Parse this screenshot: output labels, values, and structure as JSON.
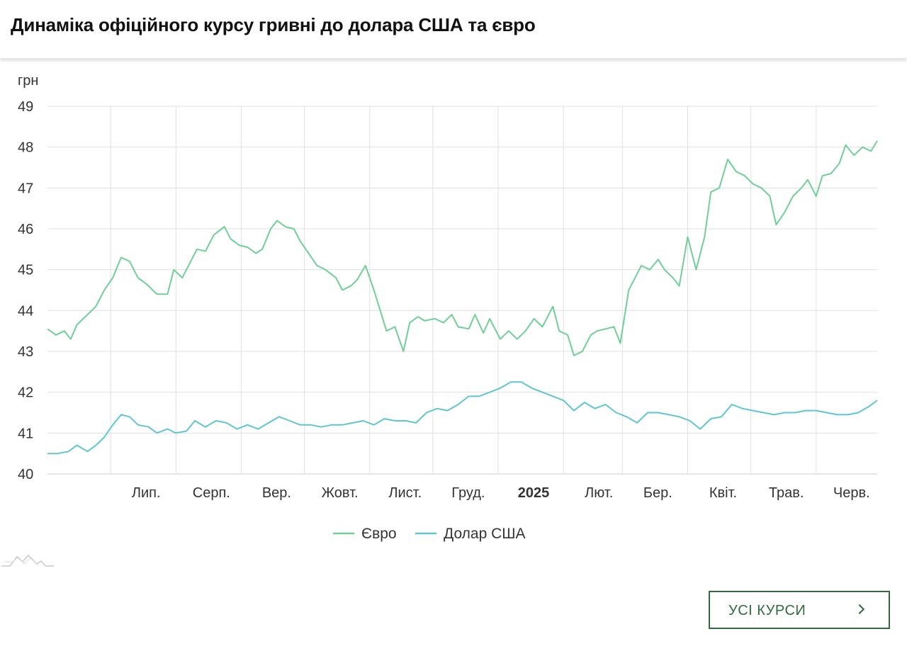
{
  "header": {
    "title": "Динаміка офіційного курсу гривні до долара США та євро"
  },
  "button": {
    "label": "УСІ КУРСИ",
    "icon": "chevron-right-icon"
  },
  "colors": {
    "euro": "#6fcf97",
    "usd": "#5ec6d0",
    "button": "#2f6b3c"
  },
  "chart_data": {
    "type": "line",
    "ylabel": "грн",
    "ylim": [
      40,
      49
    ],
    "yticks": [
      40,
      41,
      42,
      43,
      44,
      45,
      46,
      47,
      48,
      49
    ],
    "x_range": [
      "2024-06-01",
      "2025-06-30"
    ],
    "xticks": [
      {
        "date": "2024-07-01",
        "label": "Лип.",
        "bold": false
      },
      {
        "date": "2024-08-01",
        "label": "Серп.",
        "bold": false
      },
      {
        "date": "2024-09-01",
        "label": "Вер.",
        "bold": false
      },
      {
        "date": "2024-10-01",
        "label": "Жовт.",
        "bold": false
      },
      {
        "date": "2024-11-01",
        "label": "Лист.",
        "bold": false
      },
      {
        "date": "2024-12-01",
        "label": "Груд.",
        "bold": false
      },
      {
        "date": "2025-01-01",
        "label": "2025",
        "bold": true
      },
      {
        "date": "2025-02-01",
        "label": "Лют.",
        "bold": false
      },
      {
        "date": "2025-03-01",
        "label": "Бер.",
        "bold": false
      },
      {
        "date": "2025-04-01",
        "label": "Квіт.",
        "bold": false
      },
      {
        "date": "2025-05-01",
        "label": "Трав.",
        "bold": false
      },
      {
        "date": "2025-06-01",
        "label": "Черв.",
        "bold": false
      }
    ],
    "grid": true,
    "legend_position": "bottom",
    "series": [
      {
        "name": "Євро",
        "color": "#6fcf97",
        "points": [
          [
            "2024-06-01",
            43.55
          ],
          [
            "2024-06-05",
            43.4
          ],
          [
            "2024-06-09",
            43.5
          ],
          [
            "2024-06-12",
            43.3
          ],
          [
            "2024-06-15",
            43.65
          ],
          [
            "2024-06-19",
            43.85
          ],
          [
            "2024-06-24",
            44.1
          ],
          [
            "2024-06-28",
            44.5
          ],
          [
            "2024-07-02",
            44.8
          ],
          [
            "2024-07-06",
            45.3
          ],
          [
            "2024-07-10",
            45.2
          ],
          [
            "2024-07-14",
            44.8
          ],
          [
            "2024-07-18",
            44.65
          ],
          [
            "2024-07-23",
            44.4
          ],
          [
            "2024-07-28",
            44.4
          ],
          [
            "2024-07-31",
            45.0
          ],
          [
            "2024-08-04",
            44.8
          ],
          [
            "2024-08-08",
            45.2
          ],
          [
            "2024-08-11",
            45.5
          ],
          [
            "2024-08-15",
            45.45
          ],
          [
            "2024-08-19",
            45.85
          ],
          [
            "2024-08-24",
            46.05
          ],
          [
            "2024-08-27",
            45.75
          ],
          [
            "2024-08-31",
            45.6
          ],
          [
            "2024-09-04",
            45.55
          ],
          [
            "2024-09-08",
            45.4
          ],
          [
            "2024-09-11",
            45.5
          ],
          [
            "2024-09-15",
            46.0
          ],
          [
            "2024-09-18",
            46.2
          ],
          [
            "2024-09-22",
            46.05
          ],
          [
            "2024-09-26",
            46.0
          ],
          [
            "2024-09-29",
            45.7
          ],
          [
            "2024-10-03",
            45.4
          ],
          [
            "2024-10-07",
            45.1
          ],
          [
            "2024-10-11",
            45.0
          ],
          [
            "2024-10-16",
            44.8
          ],
          [
            "2024-10-19",
            44.5
          ],
          [
            "2024-10-23",
            44.6
          ],
          [
            "2024-10-26",
            44.75
          ],
          [
            "2024-10-30",
            45.1
          ],
          [
            "2024-11-03",
            44.5
          ],
          [
            "2024-11-06",
            44.0
          ],
          [
            "2024-11-09",
            43.5
          ],
          [
            "2024-11-13",
            43.6
          ],
          [
            "2024-11-17",
            43.0
          ],
          [
            "2024-11-20",
            43.7
          ],
          [
            "2024-11-24",
            43.85
          ],
          [
            "2024-11-27",
            43.75
          ],
          [
            "2024-12-02",
            43.8
          ],
          [
            "2024-12-06",
            43.7
          ],
          [
            "2024-12-10",
            43.9
          ],
          [
            "2024-12-13",
            43.6
          ],
          [
            "2024-12-18",
            43.55
          ],
          [
            "2024-12-21",
            43.9
          ],
          [
            "2024-12-25",
            43.45
          ],
          [
            "2024-12-28",
            43.8
          ],
          [
            "2025-01-02",
            43.3
          ],
          [
            "2025-01-06",
            43.5
          ],
          [
            "2025-01-10",
            43.3
          ],
          [
            "2025-01-14",
            43.5
          ],
          [
            "2025-01-18",
            43.8
          ],
          [
            "2025-01-22",
            43.6
          ],
          [
            "2025-01-27",
            44.1
          ],
          [
            "2025-01-30",
            43.5
          ],
          [
            "2025-02-03",
            43.4
          ],
          [
            "2025-02-06",
            42.9
          ],
          [
            "2025-02-10",
            43.0
          ],
          [
            "2025-02-14",
            43.4
          ],
          [
            "2025-02-17",
            43.5
          ],
          [
            "2025-02-21",
            43.55
          ],
          [
            "2025-02-25",
            43.6
          ],
          [
            "2025-02-28",
            43.2
          ],
          [
            "2025-03-04",
            44.5
          ],
          [
            "2025-03-07",
            44.8
          ],
          [
            "2025-03-10",
            45.1
          ],
          [
            "2025-03-14",
            45.0
          ],
          [
            "2025-03-18",
            45.25
          ],
          [
            "2025-03-21",
            45.0
          ],
          [
            "2025-03-25",
            44.8
          ],
          [
            "2025-03-28",
            44.6
          ],
          [
            "2025-04-01",
            45.8
          ],
          [
            "2025-04-05",
            45.0
          ],
          [
            "2025-04-09",
            45.8
          ],
          [
            "2025-04-12",
            46.9
          ],
          [
            "2025-04-16",
            47.0
          ],
          [
            "2025-04-20",
            47.7
          ],
          [
            "2025-04-24",
            47.4
          ],
          [
            "2025-04-28",
            47.3
          ],
          [
            "2025-05-02",
            47.1
          ],
          [
            "2025-05-06",
            47.0
          ],
          [
            "2025-05-10",
            46.8
          ],
          [
            "2025-05-13",
            46.1
          ],
          [
            "2025-05-17",
            46.4
          ],
          [
            "2025-05-21",
            46.8
          ],
          [
            "2025-05-25",
            47.0
          ],
          [
            "2025-05-28",
            47.2
          ],
          [
            "2025-06-01",
            46.8
          ],
          [
            "2025-06-04",
            47.3
          ],
          [
            "2025-06-08",
            47.35
          ],
          [
            "2025-06-12",
            47.6
          ],
          [
            "2025-06-15",
            48.05
          ],
          [
            "2025-06-19",
            47.8
          ],
          [
            "2025-06-23",
            48.0
          ],
          [
            "2025-06-27",
            47.9
          ],
          [
            "2025-06-30",
            48.15
          ]
        ]
      },
      {
        "name": "Долар США",
        "color": "#5ec6d0",
        "points": [
          [
            "2024-06-01",
            40.5
          ],
          [
            "2024-06-06",
            40.5
          ],
          [
            "2024-06-11",
            40.55
          ],
          [
            "2024-06-15",
            40.7
          ],
          [
            "2024-06-20",
            40.55
          ],
          [
            "2024-06-24",
            40.7
          ],
          [
            "2024-06-28",
            40.9
          ],
          [
            "2024-07-02",
            41.2
          ],
          [
            "2024-07-06",
            41.45
          ],
          [
            "2024-07-10",
            41.4
          ],
          [
            "2024-07-14",
            41.2
          ],
          [
            "2024-07-19",
            41.15
          ],
          [
            "2024-07-23",
            41.0
          ],
          [
            "2024-07-28",
            41.1
          ],
          [
            "2024-08-01",
            41.0
          ],
          [
            "2024-08-06",
            41.05
          ],
          [
            "2024-08-10",
            41.3
          ],
          [
            "2024-08-15",
            41.15
          ],
          [
            "2024-08-20",
            41.3
          ],
          [
            "2024-08-25",
            41.25
          ],
          [
            "2024-08-30",
            41.1
          ],
          [
            "2024-09-04",
            41.2
          ],
          [
            "2024-09-09",
            41.1
          ],
          [
            "2024-09-14",
            41.25
          ],
          [
            "2024-09-19",
            41.4
          ],
          [
            "2024-09-24",
            41.3
          ],
          [
            "2024-09-29",
            41.2
          ],
          [
            "2024-10-04",
            41.2
          ],
          [
            "2024-10-09",
            41.15
          ],
          [
            "2024-10-14",
            41.2
          ],
          [
            "2024-10-19",
            41.2
          ],
          [
            "2024-10-24",
            41.25
          ],
          [
            "2024-10-29",
            41.3
          ],
          [
            "2024-11-03",
            41.2
          ],
          [
            "2024-11-08",
            41.35
          ],
          [
            "2024-11-13",
            41.3
          ],
          [
            "2024-11-18",
            41.3
          ],
          [
            "2024-11-23",
            41.25
          ],
          [
            "2024-11-28",
            41.5
          ],
          [
            "2024-12-03",
            41.6
          ],
          [
            "2024-12-08",
            41.55
          ],
          [
            "2024-12-13",
            41.7
          ],
          [
            "2024-12-18",
            41.9
          ],
          [
            "2024-12-23",
            41.9
          ],
          [
            "2024-12-28",
            42.0
          ],
          [
            "2025-01-02",
            42.1
          ],
          [
            "2025-01-07",
            42.25
          ],
          [
            "2025-01-12",
            42.25
          ],
          [
            "2025-01-17",
            42.1
          ],
          [
            "2025-01-22",
            42.0
          ],
          [
            "2025-01-27",
            41.9
          ],
          [
            "2025-02-01",
            41.8
          ],
          [
            "2025-02-06",
            41.55
          ],
          [
            "2025-02-11",
            41.75
          ],
          [
            "2025-02-16",
            41.6
          ],
          [
            "2025-02-21",
            41.7
          ],
          [
            "2025-02-26",
            41.5
          ],
          [
            "2025-03-03",
            41.4
          ],
          [
            "2025-03-08",
            41.25
          ],
          [
            "2025-03-13",
            41.5
          ],
          [
            "2025-03-18",
            41.5
          ],
          [
            "2025-03-23",
            41.45
          ],
          [
            "2025-03-28",
            41.4
          ],
          [
            "2025-04-02",
            41.3
          ],
          [
            "2025-04-07",
            41.1
          ],
          [
            "2025-04-12",
            41.35
          ],
          [
            "2025-04-17",
            41.4
          ],
          [
            "2025-04-22",
            41.7
          ],
          [
            "2025-04-27",
            41.6
          ],
          [
            "2025-05-02",
            41.55
          ],
          [
            "2025-05-07",
            41.5
          ],
          [
            "2025-05-12",
            41.45
          ],
          [
            "2025-05-17",
            41.5
          ],
          [
            "2025-05-22",
            41.5
          ],
          [
            "2025-05-27",
            41.55
          ],
          [
            "2025-06-01",
            41.55
          ],
          [
            "2025-06-06",
            41.5
          ],
          [
            "2025-06-11",
            41.45
          ],
          [
            "2025-06-16",
            41.45
          ],
          [
            "2025-06-21",
            41.5
          ],
          [
            "2025-06-26",
            41.65
          ],
          [
            "2025-06-30",
            41.8
          ]
        ]
      }
    ]
  }
}
